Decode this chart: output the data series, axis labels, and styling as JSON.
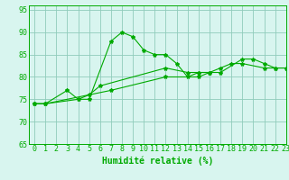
{
  "xlabel": "Humidité relative (%)",
  "xlim": [
    -0.5,
    23
  ],
  "ylim": [
    65,
    96
  ],
  "yticks": [
    65,
    70,
    75,
    80,
    85,
    90,
    95
  ],
  "xticks": [
    0,
    1,
    2,
    3,
    4,
    5,
    6,
    7,
    8,
    9,
    10,
    11,
    12,
    13,
    14,
    15,
    16,
    17,
    18,
    19,
    20,
    21,
    22,
    23
  ],
  "background_color": "#d8f5ef",
  "grid_color": "#90ccbb",
  "line_color": "#00aa00",
  "series": [
    {
      "x": [
        0,
        1,
        3,
        4,
        5,
        7,
        8,
        9,
        10,
        11,
        12,
        13,
        14,
        15,
        16,
        17,
        19,
        20,
        21,
        22,
        23
      ],
      "y": [
        74,
        74,
        77,
        75,
        75,
        88,
        90,
        89,
        86,
        85,
        85,
        83,
        80,
        81,
        81,
        81,
        84,
        84,
        83,
        82,
        82
      ]
    },
    {
      "x": [
        0,
        1,
        4,
        5,
        6,
        12,
        14,
        15,
        16,
        17,
        18,
        19,
        21,
        22,
        23
      ],
      "y": [
        74,
        74,
        75,
        76,
        78,
        82,
        81,
        81,
        81,
        82,
        83,
        83,
        82,
        82,
        82
      ]
    },
    {
      "x": [
        0,
        1,
        7,
        12,
        15,
        16
      ],
      "y": [
        74,
        74,
        77,
        80,
        80,
        81
      ]
    }
  ],
  "xlabel_fontsize": 7,
  "tick_fontsize": 6
}
